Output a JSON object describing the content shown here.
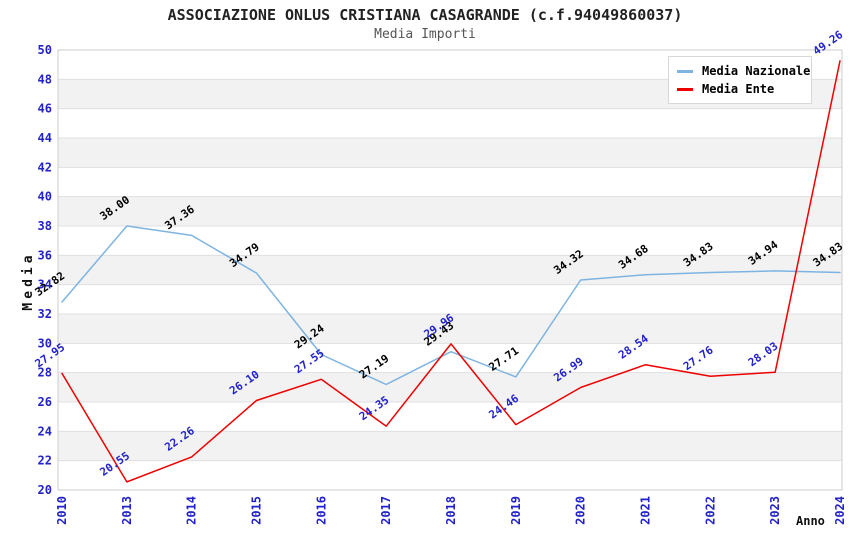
{
  "header": {
    "title": "ASSOCIAZIONE ONLUS CRISTIANA CASAGRANDE (c.f.94049860037)",
    "subtitle": "Media Importi"
  },
  "axes": {
    "y_label": "Media",
    "x_label": "Anno",
    "y_min": 20,
    "y_max": 50,
    "y_step": 2,
    "y_ticks": [
      20,
      22,
      24,
      26,
      28,
      30,
      32,
      34,
      36,
      38,
      40,
      42,
      44,
      46,
      48,
      50
    ]
  },
  "legend": {
    "position": "top-right",
    "items": [
      {
        "label": "Media Nazionale",
        "color": "#7eb4e2"
      },
      {
        "label": "Media Ente",
        "color": "#ee0000"
      }
    ]
  },
  "colors": {
    "nazionale_line": "#7eb4e2",
    "ente_line": "#ee0000",
    "tick_label_blue": "#2222cc",
    "nazionale_data_label": "#000000",
    "ente_data_label": "#2222cc",
    "band_gray": "#f2f2f2",
    "band_white": "#ffffff",
    "gridline": "#e0e0e0",
    "plot_border": "#cccccc"
  },
  "chart_data": {
    "type": "line",
    "title": "ASSOCIAZIONE ONLUS CRISTIANA CASAGRANDE (c.f.94049860037)",
    "subtitle": "Media Importi",
    "xlabel": "Anno",
    "ylabel": "Media",
    "ylim": [
      20,
      50
    ],
    "grid": "horizontal-bands-alternating",
    "legend_position": "top-right",
    "data_labels": "shown, rotated, 2 decimals",
    "categories": [
      "2010",
      "2013",
      "2014",
      "2015",
      "2016",
      "2017",
      "2018",
      "2019",
      "2020",
      "2021",
      "2022",
      "2023",
      "2024"
    ],
    "series": [
      {
        "name": "Media Nazionale",
        "color": "#7eb4e2",
        "label_color": "#000000",
        "values": [
          32.82,
          38.0,
          37.36,
          34.79,
          29.24,
          27.19,
          29.43,
          27.71,
          34.32,
          34.68,
          34.83,
          34.94,
          34.83
        ]
      },
      {
        "name": "Media Ente",
        "color": "#ee0000",
        "label_color": "#2222cc",
        "values": [
          27.95,
          20.55,
          22.26,
          26.1,
          27.55,
          24.35,
          29.96,
          24.46,
          26.99,
          28.54,
          27.76,
          28.03,
          49.26
        ]
      }
    ]
  }
}
